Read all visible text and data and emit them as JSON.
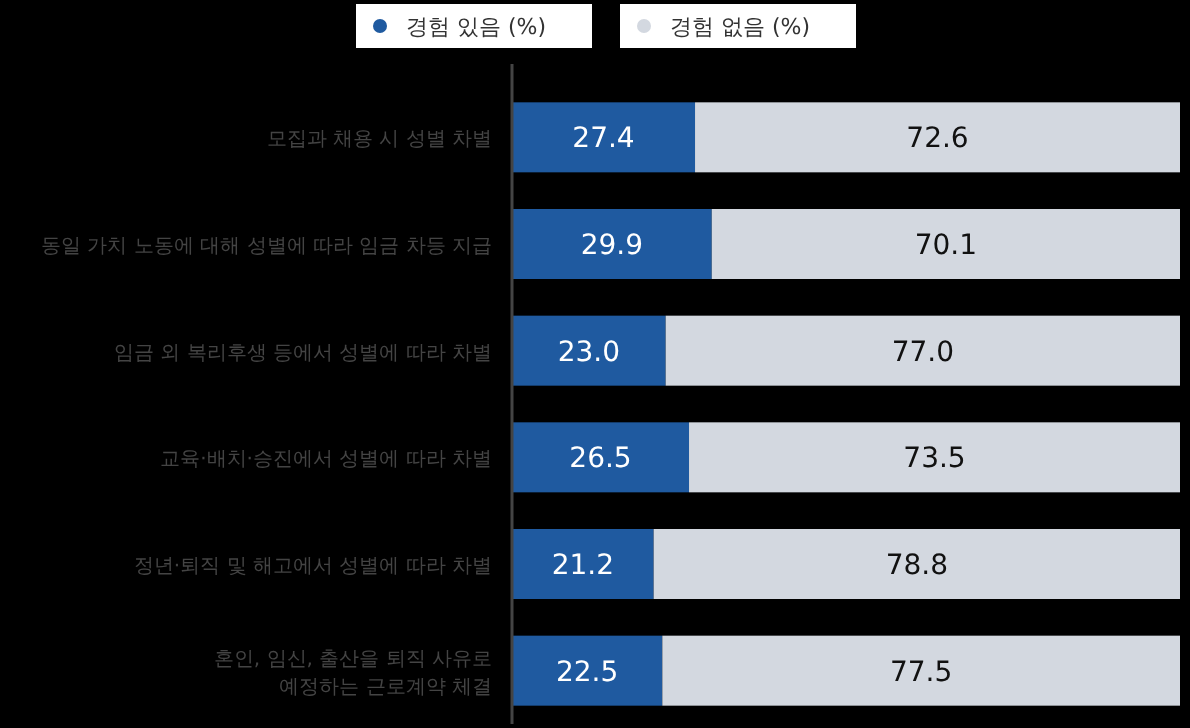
{
  "chart_data": {
    "type": "bar",
    "orientation": "horizontal",
    "stacked": true,
    "legend": "top",
    "tick_labels": "y",
    "xlim": [
      0,
      100
    ],
    "categories": [
      "모집과 채용 시 성별 차별",
      "동일 가치 노동에 대해 성별에 따라 임금 차등 지급",
      "임금 외 복리후생 등에서 성별에 따라 차별",
      "교육·배치·승진에서 성별에 따라 차별",
      "정년·퇴직 및 해고에서 성별에 따라 차별",
      "혼인, 임신, 출산을 퇴직 사유로 예정하는 근로계약 체결"
    ],
    "series": [
      {
        "name": "경험 있음 (%)",
        "color": "#1f5aa0",
        "values": [
          27.4,
          29.9,
          23.0,
          26.5,
          21.2,
          22.5
        ],
        "value_labels": [
          "27.4",
          "29.9",
          "23.0",
          "26.5",
          "21.2",
          "22.5"
        ]
      },
      {
        "name": "경험 없음 (%)",
        "color": "#d3d8e0",
        "values": [
          72.6,
          70.1,
          77.0,
          73.5,
          78.8,
          77.5
        ],
        "value_labels": [
          "72.6",
          "70.1",
          "77.0",
          "73.5",
          "78.8",
          "77.5"
        ]
      }
    ]
  }
}
